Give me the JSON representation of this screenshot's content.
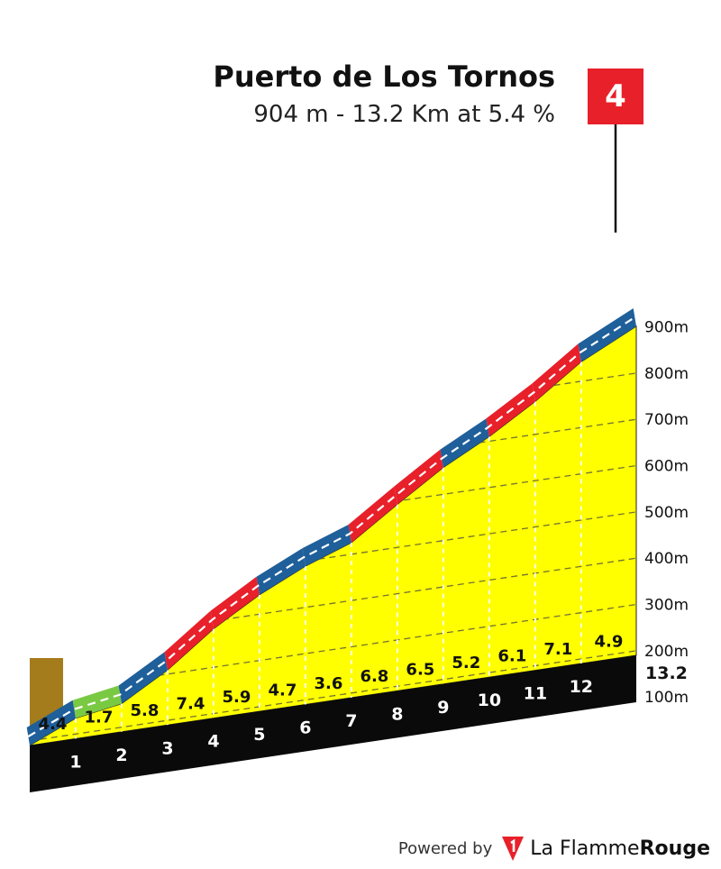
{
  "header": {
    "title": "Puerto de Los Tornos",
    "subtitle": "904 m - 13.2 Km at 5.4 %"
  },
  "category_flag": {
    "label": "4",
    "color": "#e8202a"
  },
  "footer": {
    "powered": "Powered by",
    "brand_part1": "La Flamme",
    "brand_part2": "Rouge"
  },
  "chart_data": {
    "type": "area",
    "title": "Puerto de Los Tornos",
    "subtitle": "904 m - 13.2 Km at 5.4 %",
    "y_tick_labels": [
      "100m",
      "200m",
      "300m",
      "400m",
      "500m",
      "600m",
      "700m",
      "800m",
      "900m"
    ],
    "y_ticks": [
      100,
      200,
      300,
      400,
      500,
      600,
      700,
      800,
      900
    ],
    "km_labels": [
      "1",
      "2",
      "3",
      "4",
      "5",
      "6",
      "7",
      "8",
      "9",
      "10",
      "11",
      "12"
    ],
    "end_distance_label": "13.2",
    "segment_gradients": [
      4.4,
      1.7,
      5.8,
      7.4,
      5.9,
      4.7,
      3.6,
      6.8,
      6.5,
      5.2,
      6.1,
      7.1,
      4.9
    ],
    "segment_gradient_labels": [
      "4.4",
      "1.7",
      "5.8",
      "7.4",
      "5.9",
      "4.7",
      "3.6",
      "6.8",
      "6.5",
      "5.2",
      "6.1",
      "7.1",
      "4.9"
    ],
    "distances_km": [
      0,
      1,
      2,
      3,
      4,
      5,
      6,
      7,
      8,
      9,
      10,
      11,
      12,
      13.2
    ],
    "elevations_m": [
      190,
      234,
      251,
      309,
      383,
      442,
      489,
      525,
      593,
      658,
      710,
      771,
      842,
      901
    ],
    "summit_elevation_m": 904,
    "total_distance_km": 13.2,
    "average_gradient_pct": 5.4,
    "gradient_colors": {
      "green": "#7ac943",
      "blue": "#1f5f9a",
      "red": "#e8202a"
    },
    "fill_color": "#ffff00",
    "side_color": "#a57c1b"
  }
}
